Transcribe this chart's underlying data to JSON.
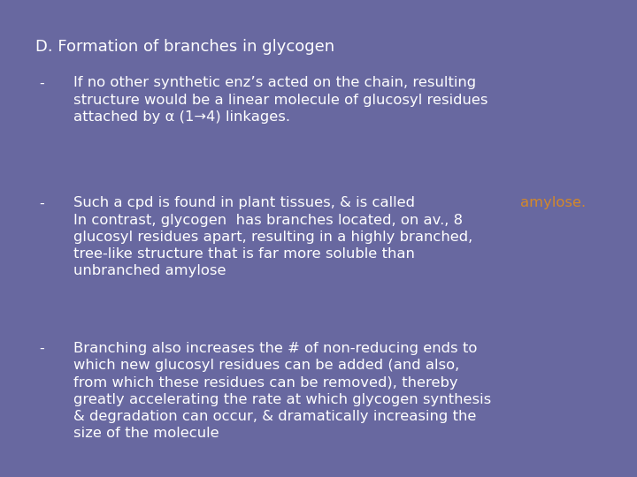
{
  "background_color": "#6868A0",
  "text_color": "#FFFFFF",
  "highlight_color": "#D4882A",
  "title": "D. Formation of branches in glycogen",
  "bullet1_text": "If no other synthetic enz’s acted on the chain, resulting\nstructure would be a linear molecule of glucosyl residues\nattached by α (1→4) linkages.",
  "bullet2_text_before": "Such a cpd is found in plant tissues, & is called ",
  "bullet2_highlight": "amylose.",
  "bullet2_continuation": "In contrast, glycogen  has branches located, on av., 8\nglucosyl residues apart, resulting in a highly branched,\ntree-like structure that is far more soluble than\nunbranched amylose",
  "bullet3_text": "Branching also increases the # of non-reducing ends to\nwhich new glucosyl residues can be added (and also,\nfrom which these residues can be removed), thereby\ngreatly accelerating the rate at which glycogen synthesis\n& degradation can occur, & dramatically increasing the\nsize of the molecule",
  "title_fontsize": 13,
  "body_fontsize": 11.8,
  "dash": "-",
  "figwidth": 7.2,
  "figheight": 5.4,
  "dpi": 100
}
